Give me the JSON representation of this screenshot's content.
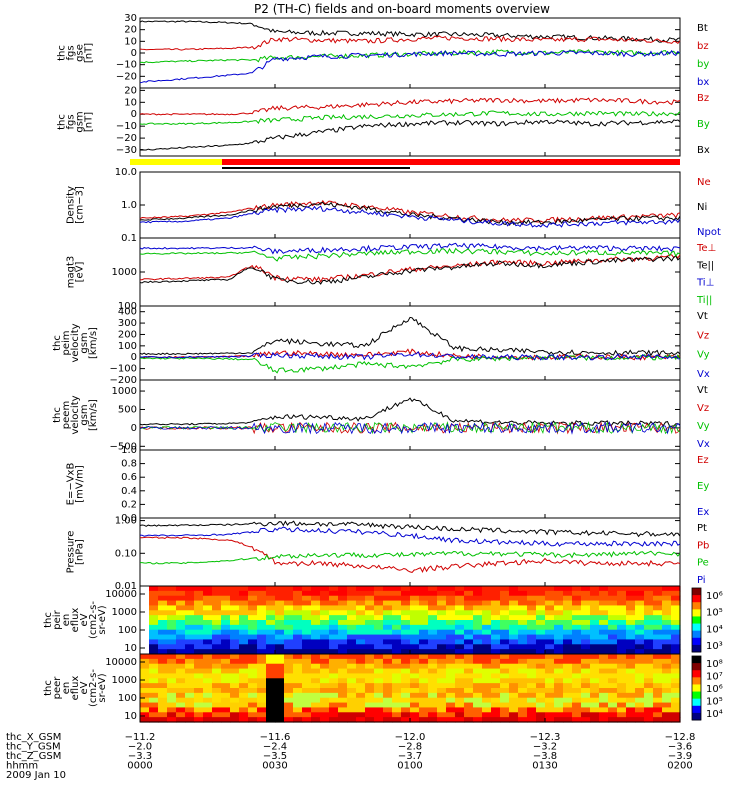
{
  "title": "P2 (TH-C) fields and on-board moments overview",
  "panels": [
    {
      "id": "fgs_gse",
      "ylabel": [
        "thc",
        "fgs",
        "gse",
        "[nT]"
      ],
      "ylim": [
        -30,
        30
      ],
      "ticks": [
        "30",
        "20",
        "10",
        "0",
        "−10",
        "−20"
      ],
      "tickvals": [
        30,
        20,
        10,
        0,
        -10,
        -20
      ],
      "legend": [
        {
          "label": "Bt",
          "color": "#000000"
        },
        {
          "label": "bz",
          "color": "#d00000"
        },
        {
          "label": "by",
          "color": "#00c000"
        },
        {
          "label": "bx",
          "color": "#0000d0"
        }
      ]
    },
    {
      "id": "fgs_gsm",
      "ylabel": [
        "thc",
        "fgs",
        "gsm",
        "[nT]"
      ],
      "ylim": [
        -35,
        22
      ],
      "ticks": [
        "20",
        "10",
        "0",
        "−10",
        "−20",
        "−30"
      ],
      "tickvals": [
        20,
        10,
        0,
        -10,
        -20,
        -30
      ],
      "legend": [
        {
          "label": "Bz",
          "color": "#d00000"
        },
        {
          "label": "By",
          "color": "#00c000"
        },
        {
          "label": "Bx",
          "color": "#000000"
        }
      ]
    },
    {
      "id": "density",
      "ylabel": [
        "Density",
        "[cm−3]"
      ],
      "log": true,
      "ylim": [
        0.1,
        10
      ],
      "ticks": [
        "10.0",
        "1.0",
        "0.1"
      ],
      "tickvals": [
        10,
        1,
        0.1
      ],
      "legend": [
        {
          "label": "Ne",
          "color": "#d00000"
        },
        {
          "label": "Ni",
          "color": "#000000"
        },
        {
          "label": "Npot",
          "color": "#0000d0"
        }
      ]
    },
    {
      "id": "temp",
      "ylabel": [
        "magt3",
        "[eV]"
      ],
      "log": true,
      "ylim": [
        100,
        10000
      ],
      "ticks": [
        "1000",
        "100"
      ],
      "tickvals": [
        1000,
        100
      ],
      "legend": [
        {
          "label": "Te⊥",
          "color": "#d00000"
        },
        {
          "label": "Te||",
          "color": "#000000"
        },
        {
          "label": "Ti⊥",
          "color": "#0000d0"
        },
        {
          "label": "Ti||",
          "color": "#00c000"
        }
      ]
    },
    {
      "id": "peim",
      "ylabel": [
        "thc",
        "peim",
        "velocity",
        "gsm",
        "[km/s]"
      ],
      "ylim": [
        -200,
        450
      ],
      "ticks": [
        "400",
        "300",
        "200",
        "100",
        "0",
        "−100",
        "−200"
      ],
      "tickvals": [
        400,
        300,
        200,
        100,
        0,
        -100,
        -200
      ],
      "legend": [
        {
          "label": "Vt",
          "color": "#000000"
        },
        {
          "label": "Vz",
          "color": "#d00000"
        },
        {
          "label": "Vy",
          "color": "#00c000"
        },
        {
          "label": "Vx",
          "color": "#0000d0"
        }
      ]
    },
    {
      "id": "peem",
      "ylabel": [
        "thc",
        "peem",
        "velocity",
        "gsm",
        "[km/s]"
      ],
      "ylim": [
        -600,
        1300
      ],
      "ticks": [
        "1000",
        "500",
        "0",
        "−500"
      ],
      "tickvals": [
        1000,
        500,
        0,
        -500
      ],
      "legend": [
        {
          "label": "Vt",
          "color": "#000000"
        },
        {
          "label": "Vz",
          "color": "#d00000"
        },
        {
          "label": "Vy",
          "color": "#00c000"
        },
        {
          "label": "Vx",
          "color": "#0000d0"
        }
      ]
    },
    {
      "id": "efield",
      "ylabel": [
        "E=−VxB",
        "[mV/m]"
      ],
      "ylim": [
        0,
        1
      ],
      "ticks": [
        "1.0",
        "0.8",
        "0.6",
        "0.4",
        "0.2",
        "0.0"
      ],
      "tickvals": [
        1,
        0.8,
        0.6,
        0.4,
        0.2,
        0
      ],
      "legend": [
        {
          "label": "Ez",
          "color": "#d00000"
        },
        {
          "label": "Ey",
          "color": "#00c000"
        },
        {
          "label": "Ex",
          "color": "#0000d0"
        }
      ]
    },
    {
      "id": "pressure",
      "ylabel": [
        "Pressure",
        "[nPa]"
      ],
      "log": true,
      "ylim": [
        0.01,
        1.2
      ],
      "ticks": [
        "1.00",
        "0.10",
        "0.01"
      ],
      "tickvals": [
        1,
        0.1,
        0.01
      ],
      "legend": [
        {
          "label": "Pt",
          "color": "#000000"
        },
        {
          "label": "Pb",
          "color": "#d00000"
        },
        {
          "label": "Pe",
          "color": "#00c000"
        },
        {
          "label": "Pi",
          "color": "#0000d0"
        }
      ]
    },
    {
      "id": "peir",
      "ylabel": [
        "thc",
        "peir",
        "en",
        "eflux",
        "eV",
        "(cm2-s-",
        "sr-eV)"
      ],
      "ticks": [
        "10000",
        "1000",
        "100",
        "10"
      ],
      "colorbar": [
        "10⁶",
        "10⁵",
        "10⁴",
        "10³"
      ]
    },
    {
      "id": "peer",
      "ylabel": [
        "thc",
        "peer",
        "en",
        "eflux",
        "eV",
        "(cm2-s-",
        "sr-eV)"
      ],
      "ticks": [
        "10000",
        "1000",
        "100",
        "10"
      ],
      "colorbar": [
        "10⁸",
        "10⁷",
        "10⁶",
        "10⁵",
        "10⁴"
      ]
    }
  ],
  "footer": {
    "rows": [
      {
        "label": "thc_X_GSM",
        "values": [
          "−11.2",
          "−11.6",
          "−12.0",
          "−12.3",
          "−12.8"
        ]
      },
      {
        "label": "thc_Y_GSM",
        "values": [
          "−2.0",
          "−2.4",
          "−2.8",
          "−3.2",
          "−3.6"
        ]
      },
      {
        "label": "thc_Z_GSM",
        "values": [
          "−3.3",
          "−3.5",
          "−3.7",
          "−3.8",
          "−3.9"
        ]
      },
      {
        "label": "hhmm",
        "values": [
          "0000",
          "0030",
          "0100",
          "0130",
          "0200"
        ]
      }
    ],
    "date": "2009 Jan 10"
  },
  "chart_data": {
    "type": "line",
    "x": [
      0,
      10,
      20,
      25,
      30,
      40,
      50,
      60,
      70,
      80,
      90,
      100,
      110,
      120
    ],
    "series": [
      {
        "panel": "fgs_gse",
        "name": "Bt",
        "values": [
          27,
          27,
          26,
          25,
          18,
          17,
          17,
          16,
          16,
          15,
          14,
          13,
          12,
          11
        ]
      },
      {
        "panel": "fgs_gse",
        "name": "bz",
        "values": [
          3,
          3,
          4,
          5,
          12,
          11,
          10,
          12,
          13,
          12,
          11,
          12,
          11,
          10
        ]
      },
      {
        "panel": "fgs_gse",
        "name": "by",
        "values": [
          -8,
          -7,
          -6,
          -6,
          -4,
          -3,
          -2,
          -1,
          0,
          1,
          0,
          1,
          0,
          1
        ]
      },
      {
        "panel": "fgs_gse",
        "name": "bx",
        "values": [
          -25,
          -22,
          -19,
          -17,
          -5,
          -3,
          -2,
          -1,
          0,
          -1,
          0,
          0,
          -1,
          0
        ]
      },
      {
        "panel": "fgs_gsm",
        "name": "Bz",
        "values": [
          0,
          0,
          0,
          1,
          5,
          6,
          8,
          10,
          11,
          12,
          11,
          12,
          11,
          10
        ]
      },
      {
        "panel": "fgs_gsm",
        "name": "By",
        "values": [
          -8,
          -8,
          -7,
          -6,
          -5,
          -3,
          -2,
          -1,
          0,
          1,
          0,
          1,
          0,
          1
        ]
      },
      {
        "panel": "fgs_gsm",
        "name": "Bx",
        "values": [
          -30,
          -28,
          -26,
          -24,
          -20,
          -15,
          -10,
          -8,
          -7,
          -8,
          -6,
          -8,
          -7,
          -6
        ]
      },
      {
        "panel": "density",
        "name": "Ne",
        "values": [
          0.4,
          0.45,
          0.6,
          0.8,
          1.0,
          1.2,
          0.9,
          0.6,
          0.45,
          0.35,
          0.35,
          0.4,
          0.45,
          0.5
        ]
      },
      {
        "panel": "density",
        "name": "Ni",
        "values": [
          0.35,
          0.4,
          0.5,
          0.7,
          0.9,
          1.1,
          0.8,
          0.5,
          0.4,
          0.3,
          0.3,
          0.35,
          0.4,
          0.4
        ]
      },
      {
        "panel": "density",
        "name": "Npot",
        "values": [
          0.3,
          0.32,
          0.4,
          0.55,
          0.7,
          0.8,
          0.6,
          0.45,
          0.35,
          0.28,
          0.25,
          0.28,
          0.3,
          0.32
        ]
      },
      {
        "panel": "temp",
        "name": "Te⊥",
        "values": [
          600,
          650,
          700,
          1500,
          700,
          600,
          800,
          1200,
          1500,
          2000,
          1800,
          2200,
          2500,
          2800
        ]
      },
      {
        "panel": "temp",
        "name": "Te||",
        "values": [
          500,
          550,
          600,
          1400,
          600,
          500,
          700,
          1100,
          1400,
          1800,
          1600,
          2000,
          2300,
          2600
        ]
      },
      {
        "panel": "temp",
        "name": "Ti⊥",
        "values": [
          5000,
          5000,
          5100,
          5200,
          4000,
          4500,
          5000,
          5500,
          6000,
          5500,
          5000,
          5200,
          5000,
          4800
        ]
      },
      {
        "panel": "temp",
        "name": "Ti||",
        "values": [
          3500,
          3500,
          3600,
          3800,
          2500,
          3000,
          3500,
          4000,
          4200,
          4000,
          3500,
          3800,
          3600,
          3500
        ]
      },
      {
        "panel": "peim",
        "name": "Vt",
        "values": [
          30,
          30,
          35,
          40,
          150,
          120,
          100,
          350,
          80,
          60,
          50,
          40,
          40,
          35
        ]
      },
      {
        "panel": "peim",
        "name": "Vz",
        "values": [
          0,
          0,
          5,
          10,
          40,
          30,
          20,
          50,
          10,
          5,
          0,
          5,
          0,
          0
        ]
      },
      {
        "panel": "peim",
        "name": "Vy",
        "values": [
          -10,
          -10,
          -15,
          -20,
          -120,
          -100,
          -60,
          -80,
          -20,
          -10,
          0,
          -5,
          0,
          -5
        ]
      },
      {
        "panel": "peim",
        "name": "Vx",
        "values": [
          0,
          0,
          5,
          10,
          20,
          10,
          0,
          30,
          5,
          0,
          0,
          0,
          5,
          0
        ]
      },
      {
        "panel": "peem",
        "name": "Vt",
        "values": [
          100,
          100,
          120,
          150,
          300,
          300,
          250,
          800,
          200,
          150,
          120,
          130,
          120,
          110
        ]
      },
      {
        "panel": "pressure",
        "name": "Pt",
        "values": [
          0.7,
          0.72,
          0.75,
          0.8,
          0.85,
          0.8,
          0.75,
          0.65,
          0.55,
          0.5,
          0.45,
          0.42,
          0.4,
          0.38
        ]
      },
      {
        "panel": "pressure",
        "name": "Pb",
        "values": [
          0.3,
          0.3,
          0.25,
          0.15,
          0.05,
          0.05,
          0.04,
          0.03,
          0.04,
          0.05,
          0.06,
          0.05,
          0.05,
          0.05
        ]
      },
      {
        "panel": "pressure",
        "name": "Pe",
        "values": [
          0.05,
          0.05,
          0.06,
          0.07,
          0.08,
          0.09,
          0.09,
          0.09,
          0.1,
          0.1,
          0.09,
          0.09,
          0.1,
          0.1
        ]
      },
      {
        "panel": "pressure",
        "name": "Pi",
        "values": [
          0.35,
          0.35,
          0.38,
          0.45,
          0.55,
          0.5,
          0.45,
          0.35,
          0.25,
          0.22,
          0.2,
          0.2,
          0.2,
          0.2
        ]
      }
    ]
  }
}
